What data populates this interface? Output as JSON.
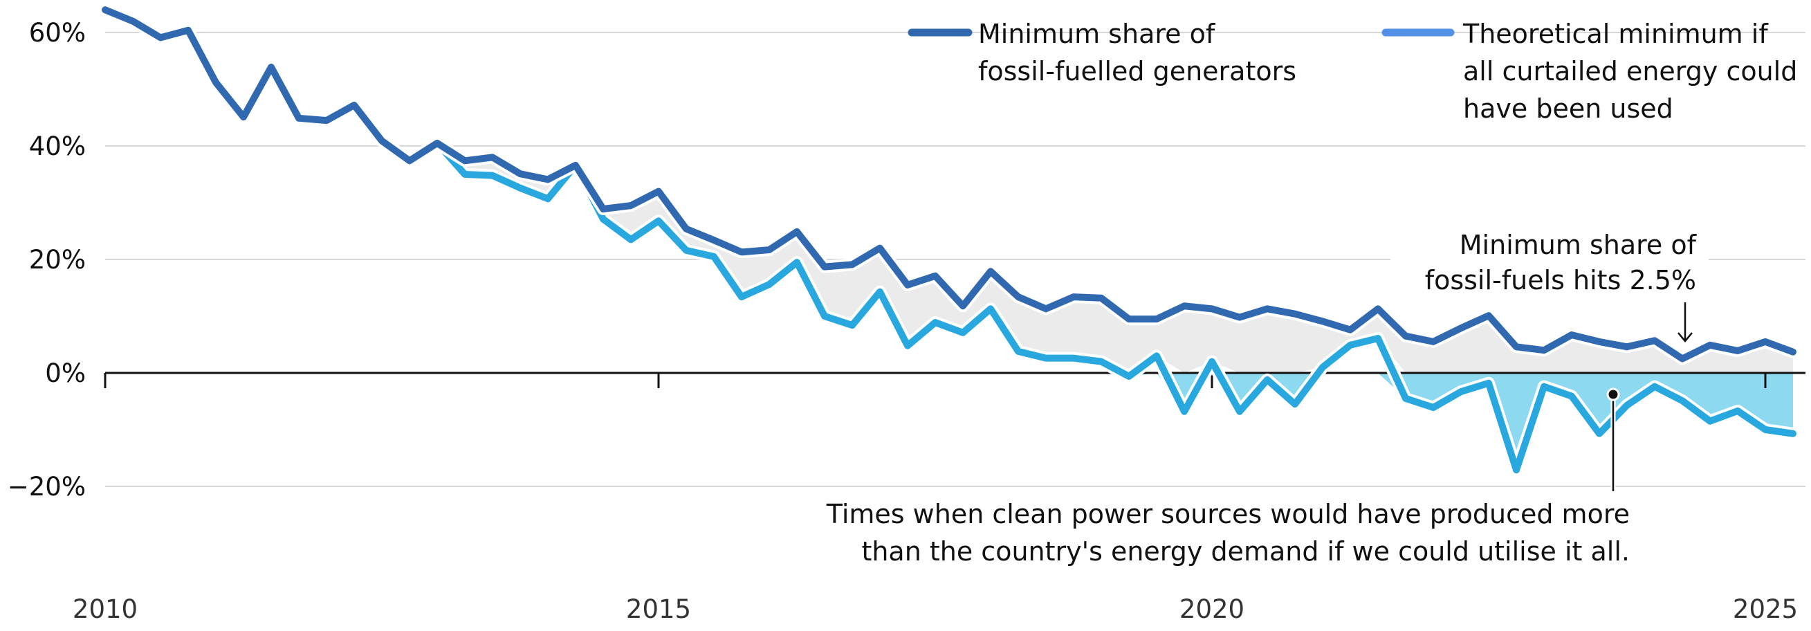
{
  "chart_data": {
    "type": "line",
    "title": "",
    "xlabel": "",
    "ylabel": "",
    "x_start": "2010 Q1",
    "x_frequency": "quarterly",
    "x_range": [
      2010,
      2025.25
    ],
    "ylim": [
      -20,
      60
    ],
    "grid": true,
    "x_ticks": [
      {
        "value": 2010,
        "label": "2010"
      },
      {
        "value": 2015,
        "label": "2015"
      },
      {
        "value": 2020,
        "label": "2020"
      },
      {
        "value": 2025,
        "label": "2025"
      }
    ],
    "y_ticks": [
      {
        "value": 60,
        "label": "60%"
      },
      {
        "value": 40,
        "label": "40%"
      },
      {
        "value": 20,
        "label": "20%"
      },
      {
        "value": 0,
        "label": "0%"
      },
      {
        "value": -20,
        "label": "−20%"
      }
    ],
    "legend_position": "top-right",
    "series": [
      {
        "name": "Minimum share of fossil-fuelled generators",
        "legend_lines": [
          "Minimum share of",
          "fossil-fuelled generators"
        ],
        "color": "#3169B1",
        "legend_color": "#3169B1",
        "values": [
          64.0,
          62.0,
          59.1,
          60.4,
          51.2,
          45.1,
          53.9,
          44.9,
          44.5,
          47.2,
          40.9,
          37.4,
          40.5,
          37.4,
          38.0,
          35.1,
          34.1,
          36.6,
          28.9,
          29.5,
          32.0,
          25.4,
          23.4,
          21.3,
          21.7,
          24.9,
          18.7,
          19.1,
          22.0,
          15.5,
          17.1,
          11.8,
          17.9,
          13.4,
          11.3,
          13.4,
          13.2,
          9.5,
          9.5,
          11.8,
          11.3,
          9.8,
          11.3,
          10.4,
          9.1,
          7.6,
          11.3,
          6.5,
          5.5,
          7.9,
          10.1,
          4.6,
          4.0,
          6.7,
          5.5,
          4.6,
          5.7,
          2.5,
          4.9,
          3.9,
          5.5,
          3.7
        ]
      },
      {
        "name": "Theoretical minimum if all curtailed energy could have been used",
        "legend_lines": [
          "Theoretical minimum if",
          "all curtailed energy could",
          "have been used"
        ],
        "color": "#29A8DF",
        "legend_color": "#5390E8",
        "values": [
          null,
          null,
          null,
          null,
          null,
          null,
          null,
          null,
          null,
          null,
          null,
          null,
          40.5,
          35.0,
          34.8,
          32.6,
          30.7,
          36.6,
          27.1,
          23.5,
          26.8,
          21.6,
          20.5,
          13.4,
          15.6,
          19.5,
          10.0,
          8.4,
          14.3,
          4.8,
          8.9,
          7.1,
          11.3,
          3.8,
          2.6,
          2.6,
          2.0,
          -0.6,
          3.0,
          -6.8,
          2.0,
          -6.8,
          -1.2,
          -5.5,
          1.0,
          4.9,
          6.1,
          -4.5,
          -6.1,
          -3.3,
          -1.8,
          -17.1,
          -2.4,
          -4.1,
          -10.7,
          -5.7,
          -2.4,
          -4.9,
          -8.5,
          -6.7,
          -10.0,
          -10.7
        ]
      }
    ],
    "fills": {
      "gap_color": "#EBEBEB",
      "below_zero_color": "#8DD9F0"
    },
    "annotations": [
      {
        "id": "min-share-hit",
        "lines": [
          "Minimum share of",
          "fossil-fuels hits 2.5%"
        ],
        "target_index": 57,
        "target_value": 2.5,
        "marker": "arrow-down"
      },
      {
        "id": "clean-surplus",
        "lines": [
          "Times when clean power sources would have produced more",
          "than the country's energy demand if we could utilise it all."
        ],
        "target_index": 54.5,
        "target_value": -5,
        "marker": "dot-line"
      }
    ]
  }
}
